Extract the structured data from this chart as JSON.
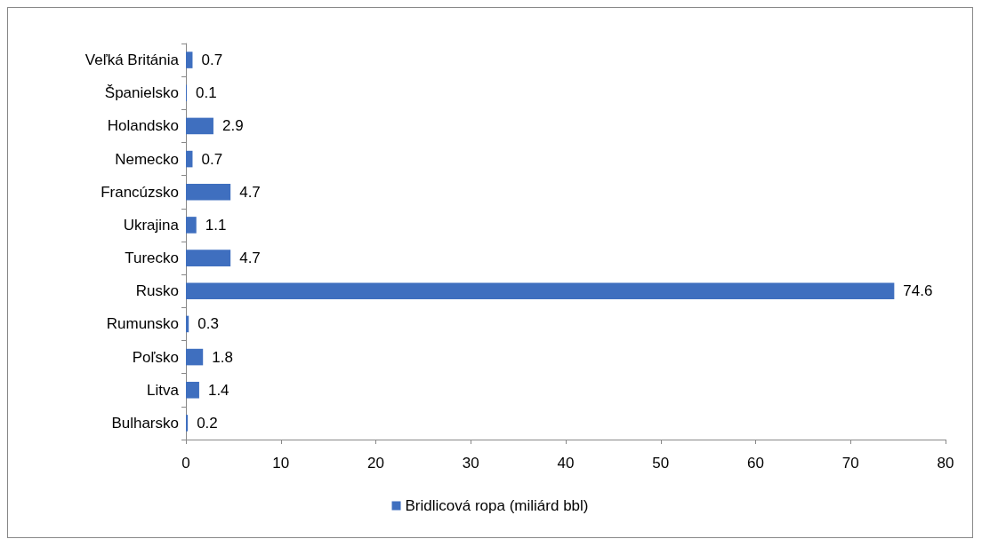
{
  "chart_data": {
    "type": "bar",
    "orientation": "horizontal",
    "categories": [
      "Veľká Británia",
      "Španielsko",
      "Holandsko",
      "Nemecko",
      "Francúzsko",
      "Ukrajina",
      "Turecko",
      "Rusko",
      "Rumunsko",
      "Poľsko",
      "Litva",
      "Bulharsko"
    ],
    "series": [
      {
        "name": "Bridlicová ropa (miliárd bbl)",
        "color": "#3f6fbf",
        "values": [
          0.7,
          0.1,
          2.9,
          0.7,
          4.7,
          1.1,
          4.7,
          74.6,
          0.3,
          1.8,
          1.4,
          0.2
        ]
      }
    ],
    "xlim": [
      0,
      80
    ],
    "xticks": [
      0,
      10,
      20,
      30,
      40,
      50,
      60,
      70,
      80
    ],
    "data_labels": true,
    "legend": "bottom",
    "grid": false
  }
}
